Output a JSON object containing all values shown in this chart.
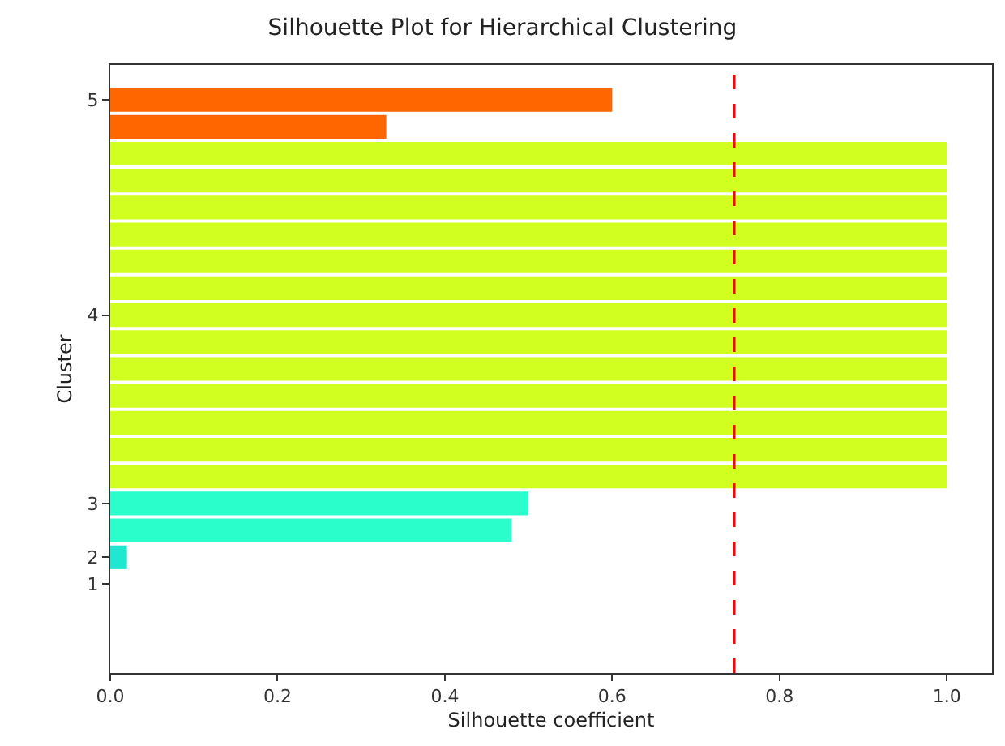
{
  "chart_data": {
    "type": "bar",
    "orientation": "horizontal",
    "title": "Silhouette Plot for Hierarchical Clustering",
    "xlabel": "Silhouette coefficient",
    "ylabel": "Cluster",
    "categories": [
      "5",
      null,
      null,
      null,
      null,
      null,
      null,
      null,
      "4",
      null,
      null,
      null,
      null,
      null,
      null,
      "3",
      null,
      "2",
      "1",
      null,
      null
    ],
    "series": [
      {
        "color": "#ff6600",
        "values": [
          0.6,
          0.33,
          null,
          null,
          null,
          null,
          null,
          null,
          null,
          null,
          null,
          null,
          null,
          null,
          null,
          null,
          null,
          null,
          null,
          null,
          null
        ]
      },
      {
        "color": "#d0ff20",
        "values": [
          null,
          null,
          1.0,
          1.0,
          1.0,
          1.0,
          1.0,
          1.0,
          1.0,
          1.0,
          1.0,
          1.0,
          1.0,
          1.0,
          1.0,
          null,
          null,
          null,
          null,
          null,
          null
        ]
      },
      {
        "color": "#2affcc",
        "values": [
          null,
          null,
          null,
          null,
          null,
          null,
          null,
          null,
          null,
          null,
          null,
          null,
          null,
          null,
          null,
          0.5,
          0.48,
          null,
          null,
          null,
          null
        ]
      },
      {
        "color": "#20e8d0",
        "values": [
          null,
          null,
          null,
          null,
          null,
          null,
          null,
          null,
          null,
          null,
          null,
          null,
          null,
          null,
          null,
          null,
          null,
          0.02,
          null,
          null,
          null
        ]
      }
    ],
    "xlim": [
      0,
      1.054
    ],
    "xticks": [
      {
        "value": 0,
        "label": "0.0"
      },
      0.2,
      0.4,
      0.6,
      0.8,
      {
        "value": 1,
        "label": "1.0"
      }
    ],
    "ref_lines": [
      {
        "axis": "x",
        "value": 0.746,
        "color": "#ff0000",
        "line_style": "dashed"
      }
    ]
  }
}
